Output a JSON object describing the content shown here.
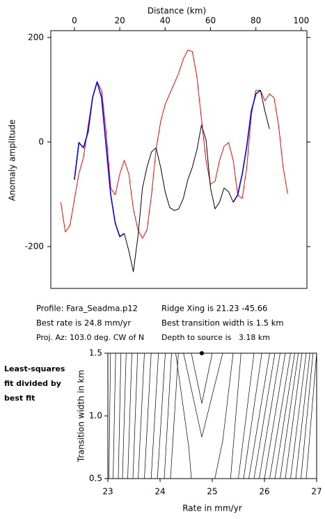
{
  "chart_data": [
    {
      "type": "line",
      "xlabel": "Distance (km)",
      "ylabel": "Anomaly amplitude",
      "xlim": [
        -10.4,
        102.5
      ],
      "xticks": [
        0,
        20,
        40,
        60,
        80,
        100
      ],
      "ylim": [
        -280,
        213
      ],
      "yticks": [
        200,
        0,
        -200
      ],
      "x": [
        -6,
        -4,
        -2,
        0,
        2,
        4,
        6,
        8,
        10,
        12,
        14,
        16,
        18,
        20,
        22,
        24,
        26,
        28,
        30,
        32,
        34,
        36,
        38,
        40,
        42,
        44,
        46,
        48,
        50,
        52,
        54,
        56,
        58,
        60,
        62,
        64,
        66,
        68,
        70,
        72,
        74,
        76,
        78,
        80,
        82,
        84,
        86,
        88,
        90,
        92,
        94
      ],
      "series": [
        {
          "name": "model",
          "color": "#ff0000",
          "values": [
            -115,
            -172,
            -160,
            -110,
            -60,
            -30,
            30,
            85,
            115,
            99,
            19,
            -88,
            -101,
            -61,
            -35,
            -61,
            -128,
            -168,
            -184,
            -168,
            -101,
            -15,
            39,
            72,
            92,
            112,
            132,
            159,
            176,
            173,
            125,
            45,
            -35,
            -81,
            -75,
            -35,
            -8,
            -1,
            -35,
            -101,
            -108,
            -48,
            52,
            99,
            99,
            79,
            92,
            85,
            32,
            -48,
            -99
          ]
        },
        {
          "name": "observed",
          "color": "#000000",
          "values": [
            null,
            null,
            null,
            -72,
            -1,
            -11,
            19,
            85,
            115,
            85,
            -8,
            -101,
            -155,
            -181,
            -175,
            -208,
            -248,
            -181,
            -88,
            -48,
            -19,
            -11,
            -48,
            -95,
            -125,
            -131,
            -128,
            -108,
            -72,
            -48,
            -15,
            32,
            5,
            -88,
            -128,
            -115,
            -88,
            -95,
            -115,
            -101,
            -61,
            -8,
            59,
            92,
            99,
            59,
            25,
            null,
            null,
            null,
            null
          ]
        },
        {
          "name": "fit window",
          "color": "#0000ff",
          "values": [
            null,
            null,
            null,
            -72,
            -1,
            -11,
            19,
            85,
            115,
            85,
            -8,
            -101,
            -155,
            -181,
            -175,
            null,
            null,
            null,
            null,
            null,
            null,
            null,
            null,
            null,
            null,
            null,
            null,
            null,
            null,
            null,
            null,
            null,
            null,
            null,
            null,
            null,
            null,
            null,
            -115,
            -101,
            -61,
            -8,
            59,
            92,
            99,
            null,
            null,
            null,
            null,
            null,
            null
          ]
        }
      ],
      "annotations": [
        "Profile: Fara_Seadma.p12",
        "Ridge Xing is 21.23 -45.66",
        "Best rate is 24.8 mm/yr",
        "Best transition width is 1.5 km",
        "Proj. Az: 103.0 deg. CW of N",
        "Depth to source is   3.18 km"
      ]
    },
    {
      "type": "contour",
      "xlabel": "Rate in mm/yr",
      "ylabel": "Transition width in km",
      "note": [
        "Least-squares",
        "fit divided by",
        "best fit"
      ],
      "xlim": [
        23,
        27
      ],
      "xticks": [
        23,
        24,
        25,
        26,
        27
      ],
      "ylim": [
        0.5,
        1.5
      ],
      "yticks": [
        0.5,
        {
          "value": 1.0,
          "label": "1.0"
        },
        1.5
      ],
      "color": "#000000",
      "contours": [
        {
          "x": [
            23.02,
            23.05
          ],
          "y": [
            0.5,
            1.5
          ]
        },
        {
          "x": [
            23.1,
            23.15
          ],
          "y": [
            0.5,
            1.5
          ]
        },
        {
          "x": [
            23.2,
            23.25
          ],
          "y": [
            0.5,
            1.5
          ]
        },
        {
          "x": [
            23.28,
            23.35
          ],
          "y": [
            0.5,
            1.5
          ]
        },
        {
          "x": [
            23.38,
            23.46
          ],
          "y": [
            0.5,
            1.5
          ]
        },
        {
          "x": [
            23.48,
            23.57
          ],
          "y": [
            0.5,
            1.5
          ]
        },
        {
          "x": [
            23.58,
            23.7
          ],
          "y": [
            0.5,
            1.5
          ]
        },
        {
          "x": [
            23.7,
            23.83
          ],
          "y": [
            0.5,
            1.5
          ]
        },
        {
          "x": [
            23.83,
            23.97
          ],
          "y": [
            0.5,
            1.5
          ]
        },
        {
          "x": [
            23.95,
            24.1
          ],
          "y": [
            0.5,
            1.5
          ]
        },
        {
          "x": [
            24.08,
            24.22
          ],
          "y": [
            0.5,
            1.5
          ]
        },
        {
          "x": [
            24.2,
            24.35
          ],
          "y": [
            0.5,
            1.5
          ]
        },
        {
          "x": [
            24.6,
            24.8,
            25.0
          ],
          "y": [
            1.5,
            1.1,
            1.5
          ]
        },
        {
          "x": [
            24.45,
            24.8,
            25.2
          ],
          "y": [
            1.5,
            0.83,
            1.5
          ]
        },
        {
          "x": [
            24.3,
            24.55,
            24.6
          ],
          "y": [
            1.5,
            0.75,
            0.5
          ]
        },
        {
          "x": [
            25.05,
            25.2,
            25.4
          ],
          "y": [
            0.5,
            0.8,
            1.5
          ]
        },
        {
          "x": [
            25.35,
            25.55
          ],
          "y": [
            0.5,
            1.5
          ]
        },
        {
          "x": [
            25.5,
            25.8
          ],
          "y": [
            0.5,
            1.5
          ]
        },
        {
          "x": [
            25.6,
            25.95
          ],
          "y": [
            0.5,
            1.5
          ]
        },
        {
          "x": [
            25.7,
            26.1
          ],
          "y": [
            0.5,
            1.5
          ]
        },
        {
          "x": [
            25.8,
            26.2
          ],
          "y": [
            0.5,
            1.5
          ]
        },
        {
          "x": [
            25.9,
            26.3
          ],
          "y": [
            0.5,
            1.5
          ]
        },
        {
          "x": [
            26.0,
            26.4
          ],
          "y": [
            0.5,
            1.5
          ]
        },
        {
          "x": [
            26.1,
            26.5
          ],
          "y": [
            0.5,
            1.5
          ]
        },
        {
          "x": [
            26.2,
            26.58
          ],
          "y": [
            0.5,
            1.5
          ]
        },
        {
          "x": [
            26.3,
            26.65
          ],
          "y": [
            0.5,
            1.5
          ]
        },
        {
          "x": [
            26.4,
            26.72
          ],
          "y": [
            0.5,
            1.5
          ]
        },
        {
          "x": [
            26.5,
            26.8
          ],
          "y": [
            0.5,
            1.5
          ]
        },
        {
          "x": [
            26.6,
            26.87
          ],
          "y": [
            0.5,
            1.5
          ]
        },
        {
          "x": [
            26.7,
            26.93
          ],
          "y": [
            0.5,
            1.5
          ]
        },
        {
          "x": [
            26.8,
            27.0
          ],
          "y": [
            0.5,
            1.5
          ]
        }
      ],
      "best_fit": {
        "x": 24.8,
        "y": 1.5
      }
    }
  ]
}
